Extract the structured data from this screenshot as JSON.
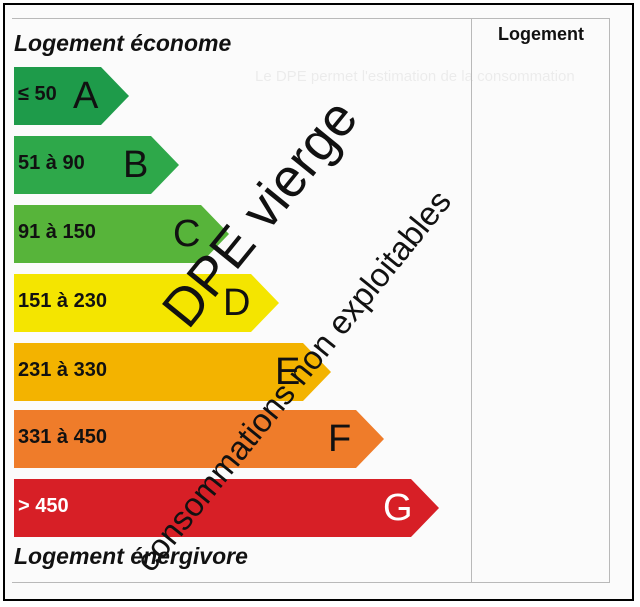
{
  "header": {
    "column_title": "Logement"
  },
  "labels": {
    "top": "Logement économe",
    "bottom": "Logement énergivore"
  },
  "bands": [
    {
      "range": "≤ 50",
      "letter": "A",
      "color": "#1e9b4a"
    },
    {
      "range": "51 à 90",
      "letter": "B",
      "color": "#2ea84a"
    },
    {
      "range": "91 à 150",
      "letter": "C",
      "color": "#57b43a"
    },
    {
      "range": "151 à 230",
      "letter": "D",
      "color": "#f4e500"
    },
    {
      "range": "231 à 330",
      "letter": "E",
      "color": "#f3b300"
    },
    {
      "range": "331 à 450",
      "letter": "F",
      "color": "#ef7c2a"
    },
    {
      "range": "> 450",
      "letter": "G",
      "color": "#d71f26"
    }
  ],
  "stamp": {
    "line1": "DPE vierge",
    "line2": "consommations non exploitables"
  }
}
